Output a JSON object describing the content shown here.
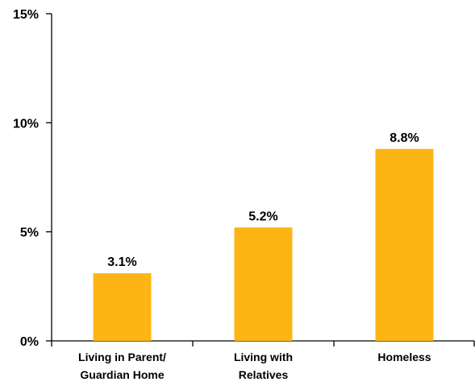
{
  "chart_data": {
    "type": "bar",
    "categories": [
      [
        "Living in Parent/",
        "Guardian Home"
      ],
      [
        "Living with",
        "Relatives"
      ],
      [
        "Homeless"
      ]
    ],
    "values": [
      3.1,
      5.2,
      8.8
    ],
    "data_labels": [
      "3.1%",
      "5.2%",
      "8.8%"
    ],
    "y_ticks": [
      0,
      5,
      10,
      15
    ],
    "y_tick_labels": [
      "0%",
      "5%",
      "10%",
      "15%"
    ],
    "ylim": [
      0,
      15
    ],
    "title": "",
    "xlabel": "",
    "ylabel": "",
    "grid": false,
    "legend": "none",
    "bar_color": "#FDB515",
    "axis_color": "#000000"
  }
}
